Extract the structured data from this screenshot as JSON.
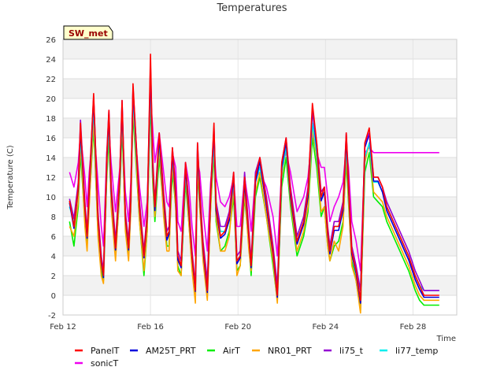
{
  "chart_data": {
    "type": "line",
    "title": "Temperatures",
    "xlabel": "Time",
    "ylabel": "Temperature (C)",
    "badge": "SW_met",
    "xlim": [
      0,
      18
    ],
    "ylim": [
      -2,
      26
    ],
    "yticks": [
      -2,
      0,
      2,
      4,
      6,
      8,
      10,
      12,
      14,
      16,
      18,
      20,
      22,
      24,
      26
    ],
    "xticks": [
      {
        "v": 0,
        "label": "Feb 12"
      },
      {
        "v": 4,
        "label": "Feb 16"
      },
      {
        "v": 8,
        "label": "Feb 20"
      },
      {
        "v": 12,
        "label": "Feb 24"
      },
      {
        "v": 16,
        "label": "Feb 28"
      }
    ],
    "grid": true,
    "legend_position": "bottom",
    "base_x": [
      0.3,
      0.5,
      0.7,
      0.8,
      1.0,
      1.1,
      1.2,
      1.4,
      1.6,
      1.75,
      1.85,
      2.0,
      2.1,
      2.2,
      2.4,
      2.6,
      2.7,
      2.85,
      3.0,
      3.1,
      3.2,
      3.5,
      3.7,
      3.85,
      4.0,
      4.1,
      4.2,
      4.4,
      4.6,
      4.75,
      4.85,
      5.0,
      5.15,
      5.25,
      5.4,
      5.6,
      5.75,
      5.9,
      6.05,
      6.15,
      6.25,
      6.4,
      6.6,
      6.75,
      6.9,
      7.0,
      7.2,
      7.4,
      7.6,
      7.8,
      7.95,
      8.1,
      8.3,
      8.5,
      8.6,
      8.8,
      9.0,
      9.3,
      9.6,
      9.8,
      10.0,
      10.2,
      10.4,
      10.7,
      11.0,
      11.2,
      11.4,
      11.6,
      11.8,
      11.95,
      12.1,
      12.2,
      12.4,
      12.6,
      12.8,
      12.95,
      13.05,
      13.2,
      13.4,
      13.6,
      13.8,
      14.0,
      14.2,
      14.4,
      14.6,
      14.8,
      15.0,
      15.2,
      15.4,
      15.6,
      15.8,
      15.95,
      16.1,
      16.3,
      16.5,
      16.7,
      16.8,
      17.0,
      17.2
    ],
    "series": [
      {
        "name": "PanelT",
        "color": "#ff0000",
        "values": [
          9.6,
          7.0,
          11.0,
          17.5,
          9.0,
          6.0,
          11.0,
          20.5,
          8.0,
          3.5,
          2.0,
          14.0,
          18.8,
          11.0,
          4.8,
          12.5,
          19.8,
          8.0,
          4.8,
          10.0,
          21.5,
          9.0,
          4.0,
          8.0,
          24.5,
          13.5,
          9.0,
          16.5,
          10.0,
          6.0,
          6.5,
          15.0,
          10.5,
          4.0,
          3.0,
          13.5,
          9.0,
          4.0,
          0.5,
          15.5,
          10.5,
          5.0,
          0.5,
          10.5,
          17.5,
          9.0,
          6.0,
          6.5,
          8.0,
          12.5,
          3.5,
          4.0,
          12.0,
          6.0,
          3.0,
          12.0,
          14.0,
          9.5,
          4.5,
          0.0,
          13.5,
          16.0,
          10.5,
          5.5,
          7.5,
          10.5,
          19.5,
          15.5,
          10.0,
          11.0,
          6.5,
          4.5,
          7.0,
          7.0,
          9.0,
          16.5,
          11.5,
          4.5,
          2.5,
          -0.5,
          15.5,
          17.0,
          12.0,
          12.0,
          11.0,
          9.0,
          8.0,
          7.0,
          6.0,
          5.0,
          4.0,
          3.0,
          2.0,
          1.0,
          0.0,
          0.0,
          0.0,
          0.0,
          0.0
        ]
      },
      {
        "name": "AM25T_PRT",
        "color": "#0000dd",
        "values": [
          9.4,
          6.8,
          10.8,
          17.0,
          8.8,
          5.8,
          10.6,
          20.0,
          7.8,
          3.3,
          1.8,
          13.6,
          18.4,
          10.6,
          4.6,
          12.0,
          19.4,
          7.8,
          4.6,
          9.6,
          21.0,
          8.8,
          3.8,
          7.8,
          23.0,
          13.0,
          8.6,
          16.0,
          9.6,
          5.6,
          6.2,
          14.5,
          10.0,
          3.6,
          2.8,
          13.0,
          8.6,
          3.8,
          0.4,
          15.0,
          10.0,
          4.6,
          0.3,
          10.2,
          16.8,
          8.6,
          5.8,
          6.2,
          7.6,
          12.0,
          3.2,
          3.8,
          11.5,
          5.8,
          2.8,
          11.5,
          13.6,
          9.0,
          4.2,
          -0.2,
          13.0,
          15.6,
          10.0,
          5.2,
          7.2,
          10.0,
          18.8,
          15.0,
          9.6,
          10.5,
          6.2,
          4.2,
          6.6,
          6.6,
          8.6,
          16.0,
          11.0,
          4.2,
          2.2,
          -0.8,
          15.0,
          16.4,
          11.6,
          11.6,
          10.5,
          8.6,
          7.6,
          6.6,
          5.6,
          4.6,
          3.6,
          2.6,
          1.6,
          0.6,
          -0.2,
          -0.2,
          -0.2,
          -0.2,
          -0.2
        ]
      },
      {
        "name": "AirT",
        "color": "#00ee00",
        "values": [
          7.5,
          5.0,
          9.0,
          14.5,
          7.5,
          5.0,
          9.5,
          17.0,
          6.5,
          2.5,
          1.5,
          12.0,
          16.0,
          9.5,
          4.0,
          10.5,
          17.0,
          7.0,
          4.0,
          9.0,
          18.5,
          7.5,
          2.0,
          6.5,
          20.0,
          11.5,
          7.5,
          14.0,
          8.5,
          5.0,
          5.0,
          12.5,
          9.0,
          3.0,
          2.0,
          11.5,
          7.5,
          3.0,
          -0.2,
          12.5,
          9.0,
          4.0,
          0.0,
          9.0,
          14.5,
          7.5,
          4.5,
          5.0,
          6.5,
          10.0,
          2.5,
          3.0,
          10.0,
          5.0,
          2.0,
          10.0,
          12.0,
          8.0,
          3.0,
          -0.5,
          11.0,
          14.0,
          9.0,
          4.0,
          6.0,
          8.5,
          16.0,
          13.0,
          8.0,
          9.0,
          5.0,
          3.5,
          5.0,
          5.5,
          7.5,
          13.5,
          9.5,
          3.5,
          1.5,
          -1.5,
          12.5,
          14.5,
          10.0,
          9.5,
          9.0,
          7.5,
          6.5,
          5.5,
          4.5,
          3.5,
          2.5,
          1.5,
          0.5,
          -0.5,
          -1.0,
          -1.0,
          -1.0,
          -1.0,
          -1.0
        ]
      },
      {
        "name": "NR01_PRT",
        "color": "#ffa500",
        "values": [
          7.0,
          6.0,
          9.5,
          15.5,
          7.0,
          4.5,
          9.0,
          18.0,
          6.0,
          2.0,
          1.2,
          12.5,
          17.5,
          9.0,
          3.5,
          11.0,
          18.0,
          6.5,
          3.5,
          8.5,
          19.5,
          7.5,
          2.5,
          6.5,
          21.5,
          12.0,
          8.0,
          15.0,
          8.0,
          4.5,
          4.5,
          13.5,
          9.0,
          2.5,
          2.0,
          12.5,
          7.5,
          2.5,
          -0.8,
          13.5,
          9.0,
          3.5,
          -0.5,
          9.0,
          15.5,
          8.0,
          4.5,
          4.5,
          6.0,
          11.0,
          2.0,
          3.0,
          10.5,
          4.5,
          2.5,
          10.5,
          12.5,
          8.0,
          3.5,
          -0.8,
          12.0,
          15.0,
          9.5,
          4.5,
          6.5,
          9.0,
          17.0,
          14.0,
          8.5,
          9.0,
          5.0,
          3.5,
          5.5,
          4.5,
          7.0,
          14.5,
          10.0,
          3.0,
          1.5,
          -1.8,
          13.5,
          15.5,
          10.5,
          10.0,
          9.5,
          8.0,
          7.0,
          6.0,
          5.0,
          4.0,
          3.0,
          2.0,
          1.0,
          0.0,
          -0.5,
          -0.5,
          -0.5,
          -0.5,
          -0.5
        ]
      },
      {
        "name": "li75_t",
        "color": "#9400d3",
        "values": [
          9.8,
          7.8,
          11.5,
          17.8,
          9.5,
          6.5,
          11.5,
          20.2,
          8.5,
          4.0,
          2.5,
          14.5,
          18.8,
          11.5,
          5.5,
          12.5,
          19.8,
          8.5,
          5.5,
          10.5,
          21.2,
          9.5,
          4.5,
          8.5,
          23.5,
          14.0,
          9.5,
          16.5,
          10.5,
          6.5,
          7.0,
          15.0,
          11.0,
          4.5,
          3.5,
          13.5,
          9.5,
          4.5,
          1.0,
          15.5,
          11.0,
          5.5,
          1.5,
          11.0,
          17.0,
          9.5,
          7.0,
          7.0,
          8.5,
          12.5,
          4.0,
          4.5,
          12.5,
          6.5,
          3.5,
          12.5,
          14.0,
          10.0,
          5.0,
          1.0,
          13.5,
          16.0,
          11.0,
          6.0,
          8.0,
          11.0,
          18.8,
          15.5,
          10.5,
          11.0,
          7.0,
          5.0,
          7.5,
          7.5,
          9.5,
          16.5,
          12.0,
          5.0,
          3.0,
          0.5,
          15.5,
          16.5,
          12.0,
          12.0,
          11.0,
          9.5,
          8.5,
          7.5,
          6.5,
          5.5,
          4.5,
          3.5,
          2.5,
          1.5,
          0.5,
          0.5,
          0.5,
          0.5,
          0.5
        ]
      },
      {
        "name": "li77_temp",
        "color": "#00eeee",
        "values": [
          9.0,
          7.5,
          11.0,
          16.0,
          9.0,
          6.0,
          11.0,
          19.0,
          8.0,
          3.5,
          2.0,
          13.5,
          17.5,
          10.5,
          5.0,
          12.0,
          18.5,
          8.0,
          5.0,
          10.0,
          20.0,
          9.0,
          4.0,
          8.0,
          22.0,
          13.0,
          9.0,
          15.5,
          10.0,
          6.0,
          6.5,
          14.0,
          10.5,
          4.0,
          3.0,
          12.5,
          9.0,
          4.0,
          0.5,
          14.0,
          10.5,
          5.0,
          1.0,
          10.5,
          15.5,
          9.0,
          6.5,
          6.5,
          8.0,
          11.5,
          3.5,
          4.0,
          11.5,
          6.0,
          3.0,
          11.5,
          13.0,
          9.5,
          4.5,
          0.5,
          12.5,
          15.0,
          10.5,
          5.5,
          7.5,
          10.5,
          17.5,
          14.5,
          10.0,
          10.5,
          6.5,
          4.5,
          7.0,
          7.0,
          9.0,
          15.0,
          11.5,
          4.5,
          2.5,
          0.5,
          14.0,
          15.5,
          11.5,
          11.5,
          10.5,
          9.0,
          8.0,
          7.0,
          6.0,
          5.0,
          4.0,
          3.0,
          2.0,
          1.0,
          0.5,
          0.5,
          0.5,
          0.5,
          0.5
        ]
      },
      {
        "name": "sonicT",
        "color": "#ee00ee",
        "values": [
          12.5,
          11.0,
          13.5,
          16.5,
          12.0,
          9.0,
          12.5,
          17.5,
          11.5,
          7.0,
          5.0,
          14.5,
          17.0,
          13.5,
          8.5,
          13.0,
          18.0,
          10.5,
          7.5,
          11.5,
          19.0,
          11.0,
          7.0,
          9.5,
          20.5,
          17.0,
          13.5,
          16.5,
          12.5,
          9.5,
          9.0,
          14.5,
          13.0,
          7.5,
          6.5,
          13.5,
          11.5,
          7.0,
          4.0,
          13.5,
          12.5,
          8.5,
          4.5,
          11.5,
          15.0,
          12.0,
          9.5,
          9.0,
          10.0,
          12.0,
          7.0,
          7.0,
          12.0,
          9.0,
          6.5,
          12.0,
          12.5,
          11.0,
          8.0,
          4.0,
          13.0,
          14.5,
          12.5,
          8.5,
          10.0,
          12.0,
          16.5,
          14.5,
          13.0,
          13.0,
          10.0,
          7.5,
          9.0,
          10.0,
          11.5,
          15.0,
          13.0,
          7.5,
          5.5,
          2.5,
          14.5,
          15.0,
          14.5,
          14.5,
          14.5,
          14.5,
          14.5,
          14.5,
          14.5,
          14.5,
          14.5,
          14.5,
          14.5,
          14.5,
          14.5,
          14.5,
          14.5,
          14.5,
          14.5
        ]
      }
    ]
  }
}
